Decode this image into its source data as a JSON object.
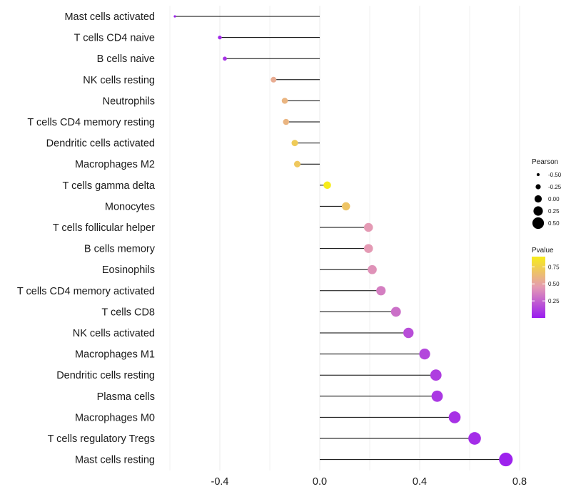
{
  "chart_data": {
    "type": "lollipop",
    "title": "",
    "xlabel": "",
    "ylabel": "",
    "xlim": [
      -0.6,
      0.8
    ],
    "xticks": [
      -0.4,
      0.0,
      0.4,
      0.8
    ],
    "xtick_labels": [
      "-0.4",
      "0.0",
      "0.4",
      "0.8"
    ],
    "grid": true,
    "categories": [
      "Mast cells activated",
      "T cells CD4 naive",
      "B cells naive",
      "NK cells resting",
      "Neutrophils",
      "T cells CD4 memory resting",
      "Dendritic cells activated",
      "Macrophages M2",
      "T cells gamma delta",
      "Monocytes",
      "T cells follicular helper",
      "B cells memory",
      "Eosinophils",
      "T cells CD4 memory activated",
      "T cells CD8",
      "NK cells activated",
      "Macrophages M1",
      "Dendritic cells resting",
      "Plasma cells",
      "Macrophages M0",
      "T cells regulatory  Tregs ",
      "Mast cells resting"
    ],
    "pearson": [
      -0.58,
      -0.4,
      -0.38,
      -0.185,
      -0.14,
      -0.135,
      -0.1,
      -0.09,
      0.03,
      0.105,
      0.195,
      0.195,
      0.21,
      0.245,
      0.305,
      0.355,
      0.42,
      0.465,
      0.47,
      0.54,
      0.62,
      0.745
    ],
    "pvalue": [
      0.02,
      0.05,
      0.08,
      0.55,
      0.6,
      0.6,
      0.72,
      0.7,
      0.9,
      0.68,
      0.45,
      0.45,
      0.42,
      0.35,
      0.3,
      0.18,
      0.15,
      0.12,
      0.1,
      0.08,
      0.06,
      0.02
    ],
    "size_legend": {
      "title": "Pearson",
      "labels": [
        "-0.50",
        "-0.25",
        "0.00",
        "0.25",
        "0.50"
      ],
      "values": [
        -0.5,
        -0.25,
        0.0,
        0.25,
        0.5
      ]
    },
    "color_legend": {
      "title": "Pvalue",
      "labels": [
        "0.75",
        "0.50",
        "0.25"
      ],
      "values": [
        0.75,
        0.5,
        0.25
      ],
      "range": [
        0.0,
        0.9
      ],
      "low_color": "#9a1cf0",
      "mid_color": "#e49ab4",
      "high_color": "#f7ec1a"
    },
    "stem_color": "#000000",
    "grid_color": "#ebebeb"
  }
}
